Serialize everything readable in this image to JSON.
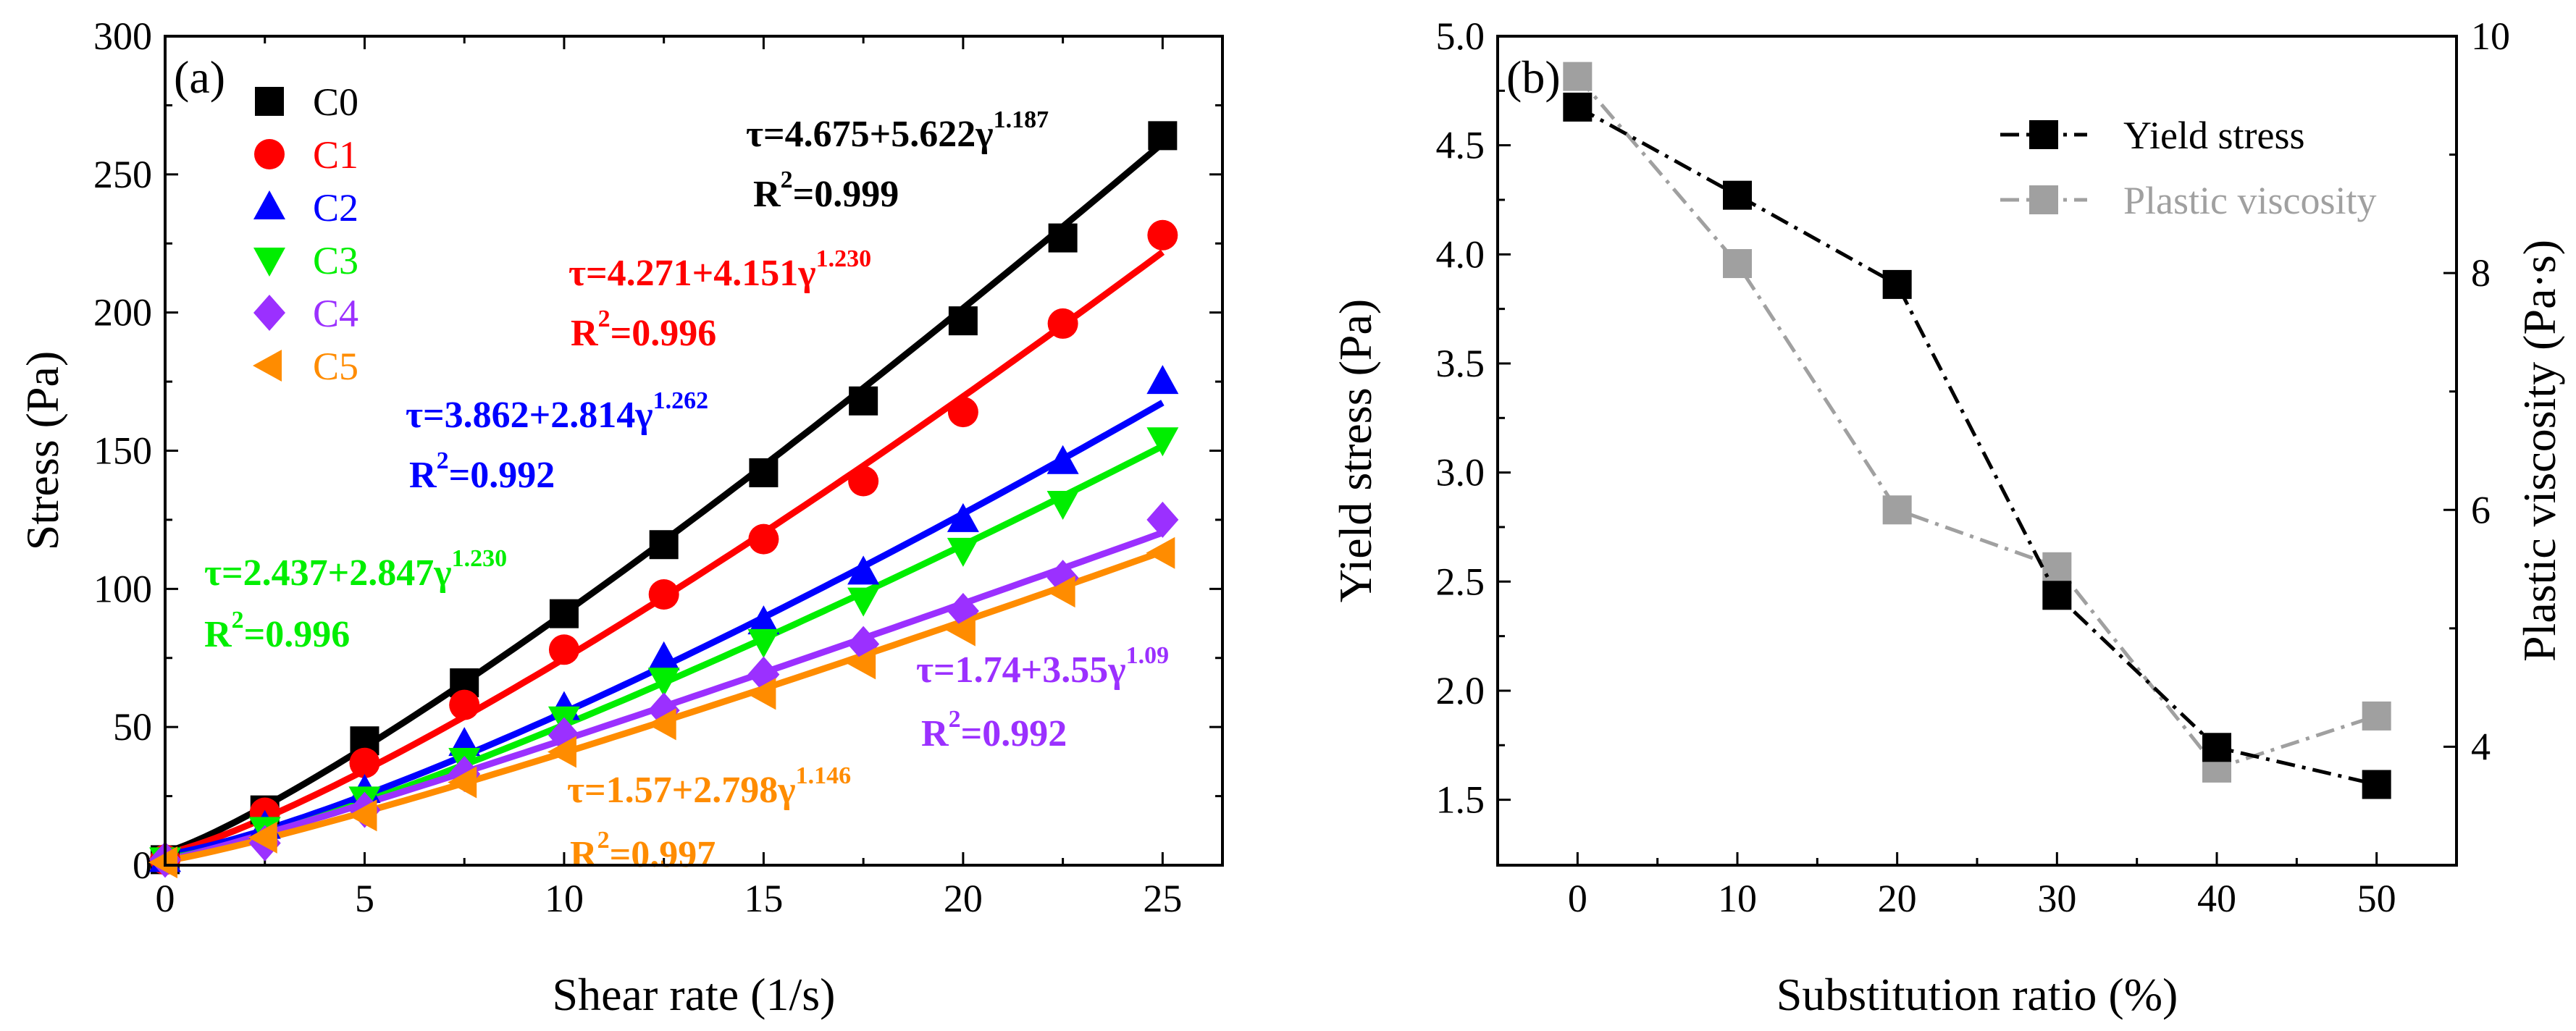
{
  "chart_data": [
    {
      "panel_label": "(a)",
      "type": "scatter",
      "xlabel": "Shear rate (1/s)",
      "ylabel": "Stress (Pa)",
      "xlim": [
        0,
        26.5
      ],
      "ylim": [
        0,
        300
      ],
      "xticks": [
        0,
        5,
        10,
        15,
        20,
        25
      ],
      "xtick_labels": [
        "0",
        "5",
        "10",
        "15",
        "20",
        "25"
      ],
      "yticks": [
        0,
        50,
        100,
        150,
        200,
        250,
        300
      ],
      "ytick_labels": [
        "0",
        "50",
        "100",
        "150",
        "200",
        "250",
        "300"
      ],
      "x": [
        0,
        2.5,
        5,
        7.5,
        10,
        12.5,
        15,
        17.5,
        20,
        22.5,
        25
      ],
      "series": [
        {
          "name": "C0",
          "color": "#000000",
          "marker": "square",
          "values": [
            2,
            20,
            45,
            66,
            91,
            116,
            142,
            168,
            197,
            227,
            264
          ],
          "fit": {
            "a": 4.675,
            "b": 5.622,
            "n": 1.187
          },
          "eq_text": "τ=4.675+5.622γ",
          "eq_exp": "1.187",
          "r2_value": "=0.999"
        },
        {
          "name": "C1",
          "color": "#ff0000",
          "marker": "circle",
          "values": [
            2,
            19,
            37,
            58,
            78,
            98,
            118,
            139,
            164,
            196,
            228
          ],
          "fit": {
            "a": 4.271,
            "b": 4.151,
            "n": 1.23
          },
          "eq_text": "τ=4.271+4.151γ",
          "eq_exp": "1.230",
          "r2_value": "=0.996"
        },
        {
          "name": "C2",
          "color": "#0000ff",
          "marker": "triangle-up",
          "values": [
            2,
            14,
            27,
            44,
            57,
            75,
            88,
            106,
            125,
            146,
            175
          ],
          "fit": {
            "a": 3.862,
            "b": 2.814,
            "n": 1.262
          },
          "eq_text": "τ=3.862+2.814γ",
          "eq_exp": "1.262",
          "r2_value": "=0.992"
        },
        {
          "name": "C3",
          "color": "#00ee00",
          "marker": "triangle-down",
          "values": [
            2,
            13,
            24,
            38,
            53,
            67,
            81,
            96,
            114,
            131,
            154
          ],
          "fit": {
            "a": 2.437,
            "b": 2.847,
            "n": 1.23
          },
          "eq_text": "τ=2.437+2.847γ",
          "eq_exp": "1.230",
          "r2_value": "=0.996"
        },
        {
          "name": "C4",
          "color": "#9b30ff",
          "marker": "diamond",
          "values": [
            2,
            8,
            20,
            33,
            47,
            56,
            69,
            80,
            92,
            104,
            125
          ],
          "fit": {
            "a": 1.74,
            "b": 3.55,
            "n": 1.09
          },
          "eq_text": "τ=1.74+3.55γ",
          "eq_exp": "1.09",
          "r2_value": "=0.992"
        },
        {
          "name": "C5",
          "color": "#ff8c00",
          "marker": "triangle-left",
          "values": [
            1,
            10,
            18,
            30,
            41,
            51,
            62,
            73,
            85,
            99,
            113
          ],
          "fit": {
            "a": 1.57,
            "b": 2.798,
            "n": 1.146
          },
          "eq_text": "τ=1.57+2.798γ",
          "eq_exp": "1.146",
          "r2_value": "=0.997"
        }
      ]
    },
    {
      "panel_label": "(b)",
      "type": "line",
      "xlabel": "Substitution ratio (%)",
      "ylabel_left": "Yield stress (Pa)",
      "ylabel_right": "Plastic viscosity (Pa·s)",
      "xlim": [
        -5,
        55
      ],
      "xticks": [
        0,
        10,
        20,
        30,
        40,
        50
      ],
      "xtick_labels": [
        "0",
        "10",
        "20",
        "30",
        "40",
        "50"
      ],
      "ylim_left": [
        1.2,
        5.0
      ],
      "yticks_left": [
        1.5,
        2.0,
        2.5,
        3.0,
        3.5,
        4.0,
        4.5,
        5.0
      ],
      "ytick_labels_left": [
        "1.5",
        "2.0",
        "2.5",
        "3.0",
        "3.5",
        "4.0",
        "4.5",
        "5.0"
      ],
      "ylim_right": [
        3.0,
        10.0
      ],
      "yticks_right": [
        4,
        6,
        8,
        10
      ],
      "ytick_labels_right": [
        "4",
        "6",
        "8",
        "10"
      ],
      "x": [
        0,
        10,
        20,
        30,
        40,
        50
      ],
      "series": [
        {
          "name": "Yield stress",
          "axis": "left",
          "color": "#000000",
          "values": [
            4.675,
            4.271,
            3.862,
            2.437,
            1.74,
            1.57
          ]
        },
        {
          "name": "Plastic viscosity",
          "axis": "right",
          "color": "#a0a0a0",
          "values": [
            9.66,
            8.08,
            6.0,
            5.52,
            3.82,
            4.26
          ]
        }
      ]
    }
  ]
}
